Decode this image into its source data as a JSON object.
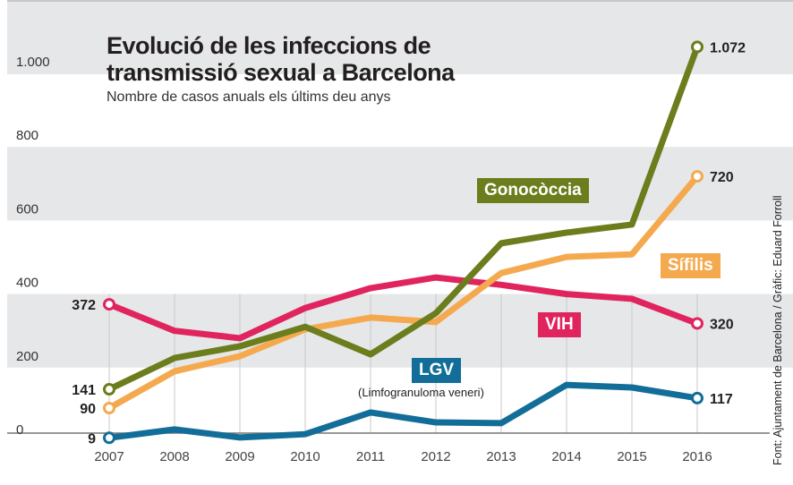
{
  "title_line1": "Evolució de les infeccions de",
  "title_line2": "transmissió sexual a Barcelona",
  "subtitle": "Nombre de casos anuals els últims deu anys",
  "source": "Font: Ajuntament de Barcelona / Gràfic: Eduard Forroll",
  "chart_data": {
    "type": "line",
    "title": "Evolució de les infeccions de transmissió sexual a Barcelona",
    "subtitle": "Nombre de casos anuals els últims deu anys",
    "x": [
      "2007",
      "2008",
      "2009",
      "2010",
      "2011",
      "2012",
      "2013",
      "2014",
      "2015",
      "2016"
    ],
    "ylim": [
      0,
      1100
    ],
    "yticks": [
      0,
      200,
      400,
      600,
      800,
      1000
    ],
    "ytick_labels": [
      "0",
      "200",
      "400",
      "600",
      "800",
      "1.000"
    ],
    "grid": "alternating horizontal bands",
    "series": [
      {
        "name": "Gonocòccia",
        "color": "#6b7d1c",
        "values": [
          141,
          226,
          258,
          311,
          236,
          348,
          538,
          567,
          589,
          1072
        ],
        "start_label": "141",
        "end_label": "1.072"
      },
      {
        "name": "Sífilis",
        "color": "#f5a94f",
        "values": [
          90,
          190,
          231,
          304,
          336,
          324,
          457,
          501,
          508,
          720
        ],
        "start_label": "90",
        "end_label": "720"
      },
      {
        "name": "VIH",
        "color": "#e0245e",
        "values": [
          372,
          300,
          280,
          362,
          416,
          445,
          425,
          400,
          387,
          320
        ],
        "start_label": "372",
        "end_label": "320"
      },
      {
        "name": "LGV",
        "subname": "(Limfogranuloma veneri)",
        "color": "#126e98",
        "values": [
          9,
          32,
          10,
          19,
          78,
          51,
          49,
          153,
          146,
          117
        ],
        "start_label": "9",
        "end_label": "117"
      }
    ]
  }
}
